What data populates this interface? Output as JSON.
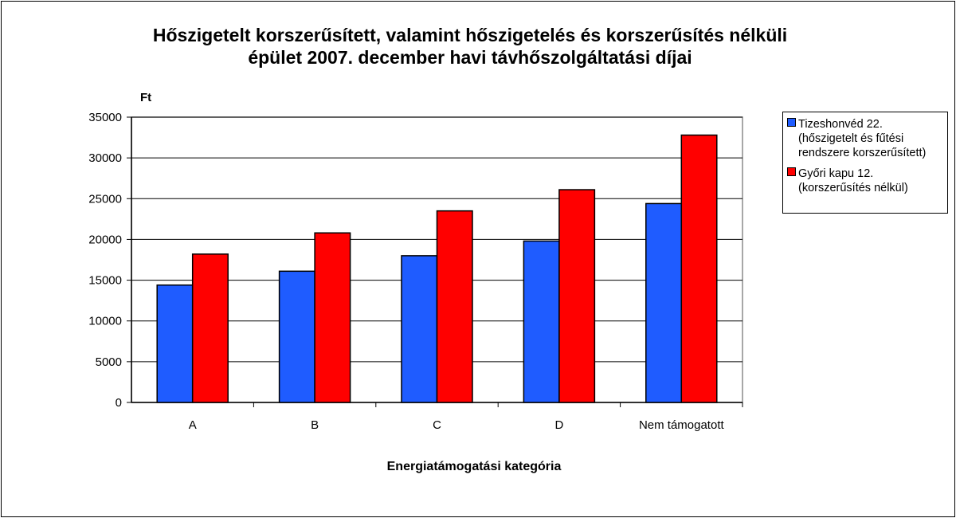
{
  "chart_data": {
    "type": "bar",
    "title": "Hőszigetelt korszerűsített, valamint hőszigetelés és korszerűsítés nélküli épület 2007. december havi távhőszolgáltatási díjai",
    "title_lines": [
      "Hőszigetelt korszerűsített, valamint hőszigetelés és korszerűsítés nélküli",
      "épület 2007. december havi távhőszolgáltatási díjai"
    ],
    "xlabel": "Energiatámogatási kategória",
    "ylabel": "Ft",
    "categories": [
      "A",
      "B",
      "C",
      "D",
      "Nem támogatott"
    ],
    "ylim": [
      0,
      35000
    ],
    "yticks": [
      "0",
      "5000",
      "10000",
      "15000",
      "20000",
      "25000",
      "30000",
      "35000"
    ],
    "grid": true,
    "legend_position": "right",
    "series": [
      {
        "name": "Tizeshonvéd 22. (hőszigetelt és fűtési rendszere korszerűsített)",
        "legend_lines": [
          "Tizeshonvéd 22.",
          "(hőszigetelt és fűtési",
          "rendszere korszerűsített)"
        ],
        "color": "#1f5cff",
        "values": [
          14400,
          16100,
          18000,
          19800,
          24400
        ]
      },
      {
        "name": "Győri kapu 12. (korszerűsítés nélkül)",
        "legend_lines": [
          "Győri kapu 12.",
          "(korszerűsítés nélkül)"
        ],
        "color": "#ff0000",
        "values": [
          18200,
          20800,
          23500,
          26100,
          32800
        ]
      }
    ]
  }
}
